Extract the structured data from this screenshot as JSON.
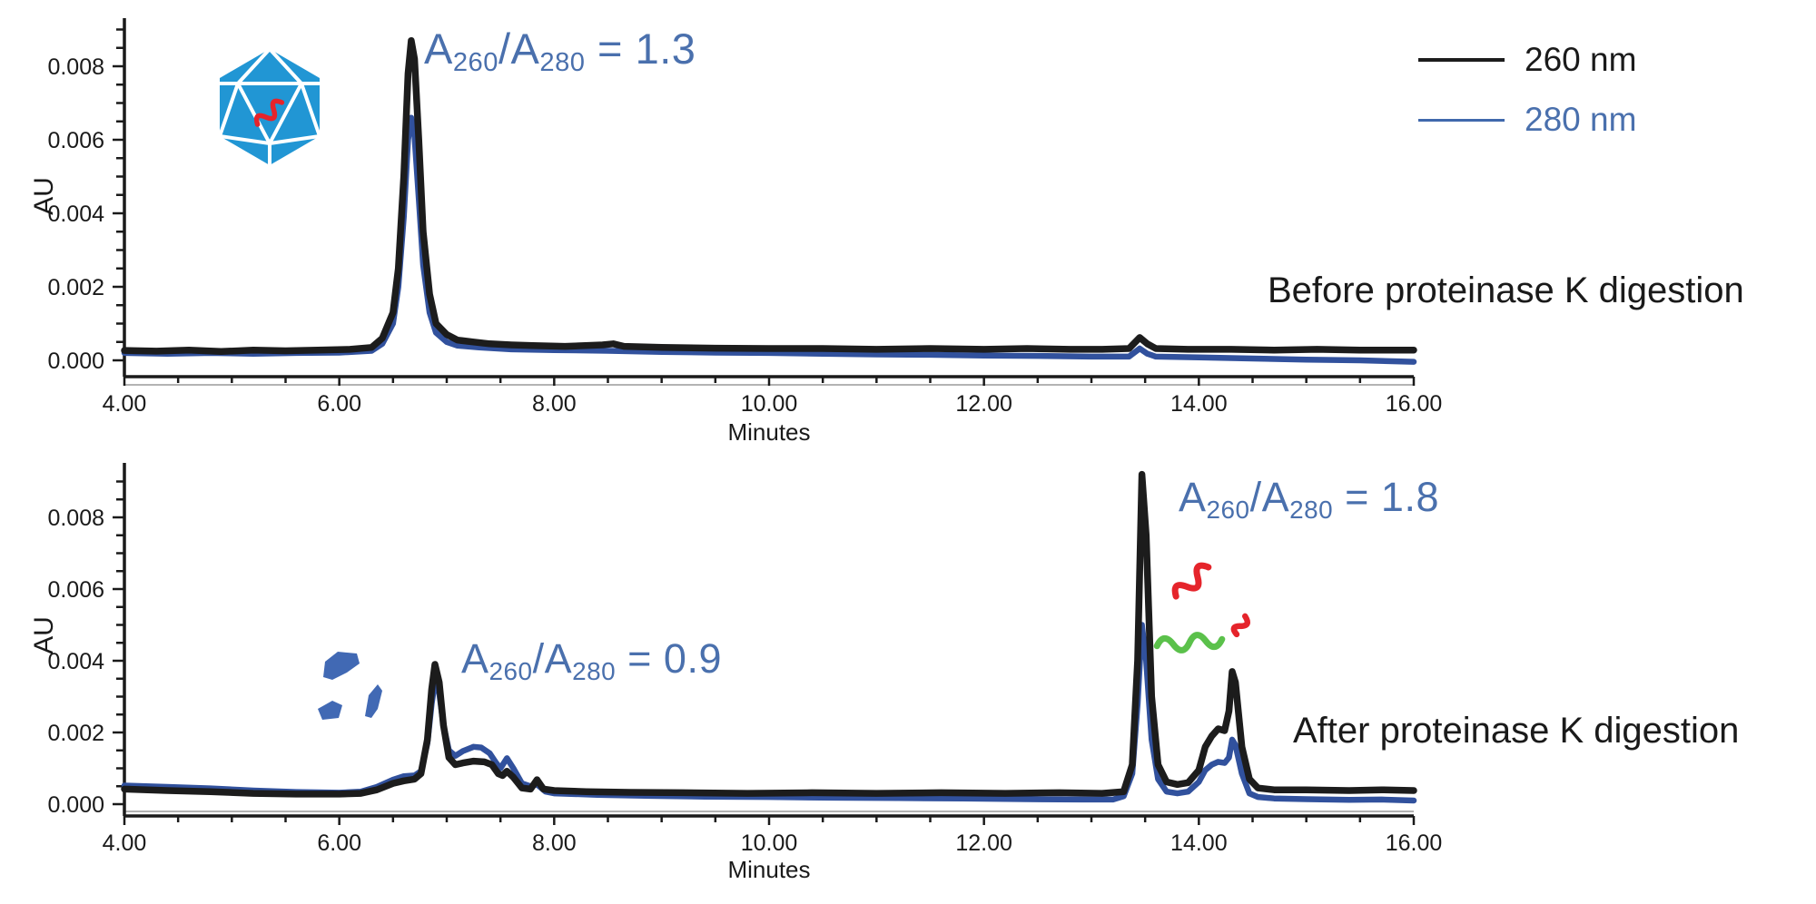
{
  "colors": {
    "trace_260": "#1c1c1c",
    "trace_280": "#31519d",
    "legend_280": "#4068ac",
    "annotation_blue": "#4a70ad",
    "capsid_blue": "#2196d4",
    "fragment_blue": "#4169b4",
    "genome_red": "#e5242b",
    "genome_green": "#5bc14b",
    "axis": "#1a1a1a"
  },
  "legend": {
    "items": [
      {
        "label": "260 nm",
        "color": "#1c1c1c"
      },
      {
        "label": "280 nm",
        "color": "#4068ac"
      }
    ]
  },
  "icons": {
    "capsid": "aav-capsid-with-genome",
    "fragments": "capsid-fragments",
    "red_squiggles": "released-dna-strands",
    "green_squiggle": "released-rna-strand"
  },
  "panels": [
    {
      "caption": "Before proteinase K digestion",
      "xlabel": "Minutes",
      "ylabel": "AU",
      "ratio": {
        "a1": "A",
        "s1": "260",
        "mid": "/A",
        "s2": "280",
        "eq": " = 1.3"
      }
    },
    {
      "caption": "After proteinase K digestion",
      "xlabel": "Minutes",
      "ylabel": "AU",
      "ratio_left": {
        "a1": "A",
        "s1": "260",
        "mid": "/A",
        "s2": "280",
        "eq": " = 0.9"
      },
      "ratio_right": {
        "a1": "A",
        "s1": "260",
        "mid": "/A",
        "s2": "280",
        "eq": " = 1.8"
      }
    }
  ],
  "chart_data": [
    {
      "type": "line",
      "title": "Before proteinase K digestion",
      "xlabel": "Minutes",
      "ylabel": "AU",
      "xlim": [
        4.0,
        16.0
      ],
      "ylim": [
        0,
        0.0093
      ],
      "xticks": [
        4,
        6,
        8,
        10,
        12,
        14,
        16
      ],
      "xtick_labels": [
        "4.00",
        "6.00",
        "8.00",
        "10.00",
        "12.00",
        "14.00",
        "16.00"
      ],
      "yticks": [
        0,
        0.002,
        0.004,
        0.006,
        0.008
      ],
      "ytick_labels": [
        "0.000",
        "0.002",
        "0.004",
        "0.006",
        "0.008"
      ],
      "x_minor_step": 0.5,
      "y_minor_step": 0.0005,
      "annotation": "A260/A280 = 1.3",
      "main_peak_minutes": 6.65,
      "legend_position": "upper right",
      "grid": false,
      "series": [
        {
          "name": "260 nm",
          "color": "#1c1c1c",
          "points": [
            [
              4.0,
              0.00027
            ],
            [
              4.3,
              0.00025
            ],
            [
              4.6,
              0.00028
            ],
            [
              4.9,
              0.00024
            ],
            [
              5.2,
              0.00028
            ],
            [
              5.5,
              0.00026
            ],
            [
              5.8,
              0.00028
            ],
            [
              6.1,
              0.0003
            ],
            [
              6.3,
              0.00035
            ],
            [
              6.4,
              0.0006
            ],
            [
              6.5,
              0.0013
            ],
            [
              6.55,
              0.0025
            ],
            [
              6.6,
              0.005
            ],
            [
              6.64,
              0.0078
            ],
            [
              6.67,
              0.0087
            ],
            [
              6.7,
              0.0082
            ],
            [
              6.74,
              0.006
            ],
            [
              6.78,
              0.0035
            ],
            [
              6.84,
              0.0018
            ],
            [
              6.9,
              0.001
            ],
            [
              7.0,
              0.0007
            ],
            [
              7.1,
              0.00055
            ],
            [
              7.25,
              0.0005
            ],
            [
              7.4,
              0.00045
            ],
            [
              7.6,
              0.00042
            ],
            [
              7.8,
              0.0004
            ],
            [
              8.1,
              0.00038
            ],
            [
              8.45,
              0.00042
            ],
            [
              8.55,
              0.00045
            ],
            [
              8.65,
              0.00038
            ],
            [
              9.0,
              0.00035
            ],
            [
              9.5,
              0.00033
            ],
            [
              10.0,
              0.00032
            ],
            [
              10.5,
              0.00032
            ],
            [
              11.0,
              0.0003
            ],
            [
              11.5,
              0.00032
            ],
            [
              12.0,
              0.0003
            ],
            [
              12.4,
              0.00032
            ],
            [
              12.8,
              0.0003
            ],
            [
              13.1,
              0.0003
            ],
            [
              13.35,
              0.00032
            ],
            [
              13.45,
              0.00062
            ],
            [
              13.52,
              0.00045
            ],
            [
              13.6,
              0.00032
            ],
            [
              13.9,
              0.0003
            ],
            [
              14.3,
              0.0003
            ],
            [
              14.7,
              0.00028
            ],
            [
              15.1,
              0.0003
            ],
            [
              15.5,
              0.00028
            ],
            [
              16.0,
              0.00028
            ]
          ]
        },
        {
          "name": "280 nm",
          "color": "#31519d",
          "points": [
            [
              4.0,
              0.0002
            ],
            [
              4.4,
              0.00018
            ],
            [
              4.8,
              0.0002
            ],
            [
              5.2,
              0.00018
            ],
            [
              5.6,
              0.0002
            ],
            [
              6.0,
              0.00021
            ],
            [
              6.3,
              0.00026
            ],
            [
              6.4,
              0.00045
            ],
            [
              6.5,
              0.001
            ],
            [
              6.55,
              0.002
            ],
            [
              6.6,
              0.0039
            ],
            [
              6.64,
              0.006
            ],
            [
              6.67,
              0.0066
            ],
            [
              6.7,
              0.0061
            ],
            [
              6.74,
              0.0044
            ],
            [
              6.78,
              0.0026
            ],
            [
              6.84,
              0.0013
            ],
            [
              6.9,
              0.00075
            ],
            [
              7.0,
              0.0005
            ],
            [
              7.1,
              0.0004
            ],
            [
              7.3,
              0.00035
            ],
            [
              7.6,
              0.0003
            ],
            [
              8.0,
              0.00028
            ],
            [
              8.5,
              0.00026
            ],
            [
              9.0,
              0.00023
            ],
            [
              9.5,
              0.00021
            ],
            [
              10.0,
              0.0002
            ],
            [
              10.5,
              0.00018
            ],
            [
              11.0,
              0.00016
            ],
            [
              11.5,
              0.00015
            ],
            [
              12.0,
              0.00013
            ],
            [
              12.5,
              0.00012
            ],
            [
              13.0,
              0.0001
            ],
            [
              13.35,
              0.0001
            ],
            [
              13.45,
              0.00032
            ],
            [
              13.52,
              0.00018
            ],
            [
              13.6,
              0.0001
            ],
            [
              14.0,
              8e-05
            ],
            [
              14.5,
              5e-05
            ],
            [
              15.0,
              2e-05
            ],
            [
              15.5,
              0.0
            ],
            [
              16.0,
              -4e-05
            ]
          ]
        }
      ]
    },
    {
      "type": "line",
      "title": "After proteinase K digestion",
      "xlabel": "Minutes",
      "ylabel": "AU",
      "xlim": [
        4.0,
        16.0
      ],
      "ylim": [
        0,
        0.0095
      ],
      "xticks": [
        4,
        6,
        8,
        10,
        12,
        14,
        16
      ],
      "xtick_labels": [
        "4.00",
        "6.00",
        "8.00",
        "10.00",
        "12.00",
        "14.00",
        "16.00"
      ],
      "yticks": [
        0,
        0.002,
        0.004,
        0.006,
        0.008
      ],
      "ytick_labels": [
        "0.000",
        "0.002",
        "0.004",
        "0.006",
        "0.008"
      ],
      "x_minor_step": 0.5,
      "y_minor_step": 0.0005,
      "annotations": [
        "A260/A280 = 0.9",
        "A260/A280 = 1.8"
      ],
      "main_peak_minutes": [
        6.9,
        13.47
      ],
      "grid": false,
      "series": [
        {
          "name": "260 nm",
          "color": "#1c1c1c",
          "points": [
            [
              4.0,
              0.00042
            ],
            [
              4.4,
              0.00038
            ],
            [
              4.8,
              0.00035
            ],
            [
              5.2,
              0.0003
            ],
            [
              5.6,
              0.00028
            ],
            [
              6.0,
              0.00028
            ],
            [
              6.2,
              0.0003
            ],
            [
              6.35,
              0.0004
            ],
            [
              6.5,
              0.00058
            ],
            [
              6.6,
              0.00065
            ],
            [
              6.7,
              0.0007
            ],
            [
              6.76,
              0.00085
            ],
            [
              6.82,
              0.0018
            ],
            [
              6.86,
              0.0032
            ],
            [
              6.89,
              0.0039
            ],
            [
              6.93,
              0.0034
            ],
            [
              6.97,
              0.0022
            ],
            [
              7.02,
              0.0013
            ],
            [
              7.08,
              0.0011
            ],
            [
              7.15,
              0.00115
            ],
            [
              7.25,
              0.0012
            ],
            [
              7.35,
              0.00118
            ],
            [
              7.42,
              0.0011
            ],
            [
              7.48,
              0.00085
            ],
            [
              7.52,
              0.0008
            ],
            [
              7.56,
              0.00092
            ],
            [
              7.62,
              0.00075
            ],
            [
              7.7,
              0.00045
            ],
            [
              7.78,
              0.00042
            ],
            [
              7.84,
              0.00068
            ],
            [
              7.9,
              0.00042
            ],
            [
              8.0,
              0.00038
            ],
            [
              8.3,
              0.00035
            ],
            [
              8.7,
              0.00033
            ],
            [
              9.2,
              0.00032
            ],
            [
              9.8,
              0.0003
            ],
            [
              10.4,
              0.00032
            ],
            [
              11.0,
              0.0003
            ],
            [
              11.6,
              0.00032
            ],
            [
              12.2,
              0.0003
            ],
            [
              12.7,
              0.00032
            ],
            [
              13.1,
              0.0003
            ],
            [
              13.3,
              0.00035
            ],
            [
              13.38,
              0.0011
            ],
            [
              13.43,
              0.004
            ],
            [
              13.47,
              0.0092
            ],
            [
              13.51,
              0.0075
            ],
            [
              13.56,
              0.003
            ],
            [
              13.62,
              0.0011
            ],
            [
              13.7,
              0.00062
            ],
            [
              13.8,
              0.00055
            ],
            [
              13.9,
              0.0006
            ],
            [
              14.0,
              0.00095
            ],
            [
              14.06,
              0.0016
            ],
            [
              14.12,
              0.0019
            ],
            [
              14.18,
              0.0021
            ],
            [
              14.24,
              0.00205
            ],
            [
              14.28,
              0.0026
            ],
            [
              14.31,
              0.0037
            ],
            [
              14.34,
              0.0034
            ],
            [
              14.4,
              0.0016
            ],
            [
              14.47,
              0.0007
            ],
            [
              14.55,
              0.00045
            ],
            [
              14.7,
              0.0004
            ],
            [
              15.0,
              0.0004
            ],
            [
              15.4,
              0.00038
            ],
            [
              15.7,
              0.0004
            ],
            [
              16.0,
              0.00038
            ]
          ]
        },
        {
          "name": "280 nm",
          "color": "#31519d",
          "points": [
            [
              4.0,
              0.00052
            ],
            [
              4.4,
              0.00048
            ],
            [
              4.8,
              0.00044
            ],
            [
              5.2,
              0.00038
            ],
            [
              5.6,
              0.00034
            ],
            [
              6.0,
              0.00032
            ],
            [
              6.2,
              0.00035
            ],
            [
              6.35,
              0.00048
            ],
            [
              6.5,
              0.00068
            ],
            [
              6.6,
              0.00078
            ],
            [
              6.7,
              0.0008
            ],
            [
              6.76,
              0.00092
            ],
            [
              6.82,
              0.0017
            ],
            [
              6.86,
              0.0028
            ],
            [
              6.89,
              0.0034
            ],
            [
              6.93,
              0.0031
            ],
            [
              6.97,
              0.0022
            ],
            [
              7.02,
              0.0015
            ],
            [
              7.08,
              0.00135
            ],
            [
              7.15,
              0.00148
            ],
            [
              7.25,
              0.0016
            ],
            [
              7.32,
              0.00158
            ],
            [
              7.4,
              0.00142
            ],
            [
              7.46,
              0.00115
            ],
            [
              7.5,
              0.001
            ],
            [
              7.56,
              0.00128
            ],
            [
              7.62,
              0.001
            ],
            [
              7.7,
              0.00058
            ],
            [
              7.78,
              0.0005
            ],
            [
              7.84,
              0.00055
            ],
            [
              7.92,
              0.00035
            ],
            [
              8.0,
              0.0003
            ],
            [
              8.4,
              0.00026
            ],
            [
              8.9,
              0.00023
            ],
            [
              9.4,
              0.00021
            ],
            [
              10.0,
              0.0002
            ],
            [
              10.6,
              0.00018
            ],
            [
              11.2,
              0.00017
            ],
            [
              11.8,
              0.00016
            ],
            [
              12.4,
              0.00014
            ],
            [
              12.9,
              0.00013
            ],
            [
              13.2,
              0.00013
            ],
            [
              13.3,
              0.00022
            ],
            [
              13.38,
              0.00085
            ],
            [
              13.43,
              0.0028
            ],
            [
              13.47,
              0.005
            ],
            [
              13.51,
              0.004
            ],
            [
              13.56,
              0.0018
            ],
            [
              13.62,
              0.0007
            ],
            [
              13.7,
              0.00035
            ],
            [
              13.8,
              0.0003
            ],
            [
              13.9,
              0.00035
            ],
            [
              14.0,
              0.00062
            ],
            [
              14.06,
              0.00095
            ],
            [
              14.12,
              0.0011
            ],
            [
              14.18,
              0.00118
            ],
            [
              14.24,
              0.00115
            ],
            [
              14.28,
              0.0013
            ],
            [
              14.31,
              0.0018
            ],
            [
              14.34,
              0.00165
            ],
            [
              14.4,
              0.00085
            ],
            [
              14.47,
              0.0003
            ],
            [
              14.55,
              0.0002
            ],
            [
              14.7,
              0.00016
            ],
            [
              15.0,
              0.00014
            ],
            [
              15.4,
              0.00012
            ],
            [
              15.7,
              0.00013
            ],
            [
              16.0,
              0.0001
            ]
          ]
        }
      ]
    }
  ]
}
